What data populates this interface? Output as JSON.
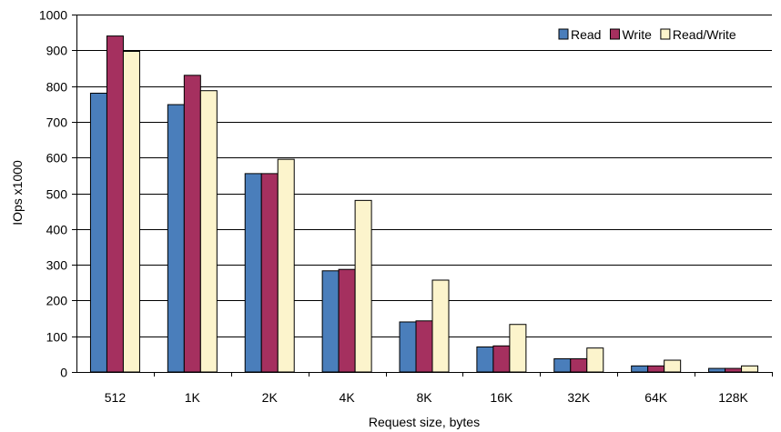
{
  "chart_data": {
    "type": "bar",
    "xlabel": "Request size, bytes",
    "ylabel": "IOps x1000",
    "ylim": [
      0,
      1000
    ],
    "yticks": [
      0,
      100,
      200,
      300,
      400,
      500,
      600,
      700,
      800,
      900,
      1000
    ],
    "grid": true,
    "legend_position": "top-right",
    "categories": [
      "512",
      "1K",
      "2K",
      "4K",
      "8K",
      "16K",
      "32K",
      "64K",
      "128K"
    ],
    "series": [
      {
        "name": "Read",
        "color": "#4a7ebb",
        "values": [
          780,
          748,
          555,
          283,
          140,
          70,
          37,
          17,
          10
        ]
      },
      {
        "name": "Write",
        "color": "#a5305f",
        "values": [
          940,
          830,
          555,
          287,
          143,
          73,
          37,
          17,
          10
        ]
      },
      {
        "name": "Read/Write",
        "color": "#fcf4cc",
        "values": [
          897,
          787,
          595,
          480,
          257,
          133,
          67,
          33,
          17
        ]
      }
    ]
  }
}
